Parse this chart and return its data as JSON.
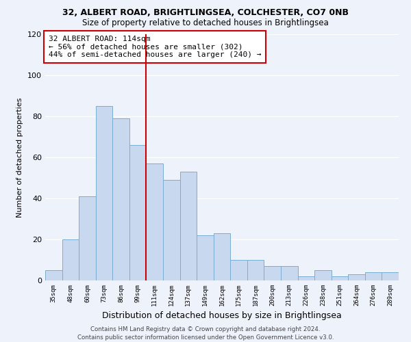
{
  "title1": "32, ALBERT ROAD, BRIGHTLINGSEA, COLCHESTER, CO7 0NB",
  "title2": "Size of property relative to detached houses in Brightlingsea",
  "xlabel": "Distribution of detached houses by size in Brightlingsea",
  "ylabel": "Number of detached properties",
  "bin_labels": [
    "35sqm",
    "48sqm",
    "60sqm",
    "73sqm",
    "86sqm",
    "99sqm",
    "111sqm",
    "124sqm",
    "137sqm",
    "149sqm",
    "162sqm",
    "175sqm",
    "187sqm",
    "200sqm",
    "213sqm",
    "226sqm",
    "238sqm",
    "251sqm",
    "264sqm",
    "276sqm",
    "289sqm"
  ],
  "bar_heights": [
    5,
    20,
    41,
    85,
    79,
    66,
    57,
    49,
    53,
    22,
    23,
    10,
    10,
    7,
    7,
    2,
    5,
    2,
    3,
    4,
    4
  ],
  "bar_color": "#c8d8ef",
  "bar_edge_color": "#7aadd4",
  "vline_color": "#cc0000",
  "vline_x_index": 6,
  "annotation_title": "32 ALBERT ROAD: 114sqm",
  "annotation_line1": "← 56% of detached houses are smaller (302)",
  "annotation_line2": "44% of semi-detached houses are larger (240) →",
  "annotation_box_color": "#ffffff",
  "annotation_box_edge": "#cc0000",
  "ylim": [
    0,
    120
  ],
  "yticks": [
    0,
    20,
    40,
    60,
    80,
    100,
    120
  ],
  "footnote1": "Contains HM Land Registry data © Crown copyright and database right 2024.",
  "footnote2": "Contains public sector information licensed under the Open Government Licence v3.0.",
  "bg_color": "#eef2fb"
}
